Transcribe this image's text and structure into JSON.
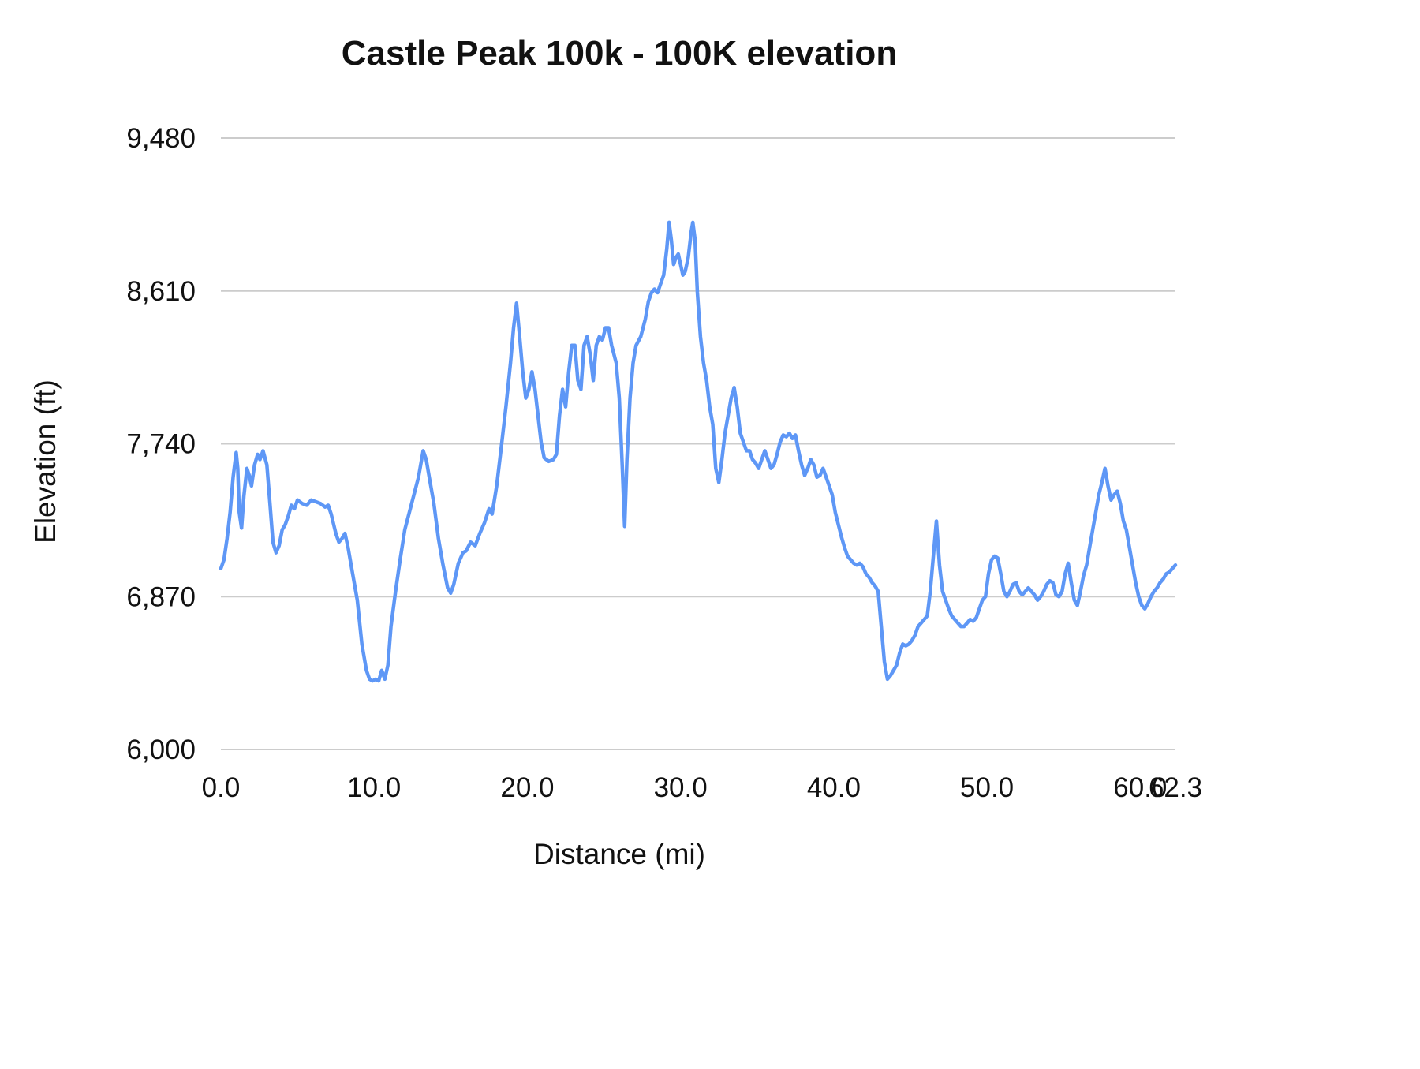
{
  "chart_data": {
    "type": "line",
    "title": "Castle Peak 100k - 100K elevation",
    "xlabel": "Distance (mi)",
    "ylabel": "Elevation (ft)",
    "xlim": [
      0,
      62.3
    ],
    "ylim": [
      6000,
      9480
    ],
    "grid": "horizontal",
    "legend": "none",
    "line_color": "#5e97f6",
    "x_ticks": [
      {
        "value": 0,
        "label": "0.0"
      },
      {
        "value": 10,
        "label": "10.0"
      },
      {
        "value": 20,
        "label": "20.0"
      },
      {
        "value": 30,
        "label": "30.0"
      },
      {
        "value": 40,
        "label": "40.0"
      },
      {
        "value": 50,
        "label": "50.0"
      },
      {
        "value": 60,
        "label": "60.0"
      },
      {
        "value": 62.3,
        "label": "62.3"
      }
    ],
    "y_ticks": [
      {
        "value": 6000,
        "label": "6,000"
      },
      {
        "value": 6870,
        "label": "6,870"
      },
      {
        "value": 7740,
        "label": "7,740"
      },
      {
        "value": 8610,
        "label": "8,610"
      },
      {
        "value": 9480,
        "label": "9,480"
      }
    ],
    "series": [
      {
        "name": "elevation",
        "color": "#5e97f6",
        "points": [
          [
            0.0,
            7030
          ],
          [
            0.2,
            7080
          ],
          [
            0.4,
            7200
          ],
          [
            0.6,
            7350
          ],
          [
            0.8,
            7550
          ],
          [
            1.0,
            7690
          ],
          [
            1.1,
            7600
          ],
          [
            1.2,
            7350
          ],
          [
            1.35,
            7260
          ],
          [
            1.5,
            7440
          ],
          [
            1.7,
            7600
          ],
          [
            1.85,
            7560
          ],
          [
            2.0,
            7500
          ],
          [
            2.2,
            7620
          ],
          [
            2.4,
            7680
          ],
          [
            2.55,
            7650
          ],
          [
            2.75,
            7700
          ],
          [
            3.0,
            7620
          ],
          [
            3.2,
            7400
          ],
          [
            3.4,
            7180
          ],
          [
            3.6,
            7120
          ],
          [
            3.8,
            7160
          ],
          [
            4.0,
            7250
          ],
          [
            4.2,
            7280
          ],
          [
            4.4,
            7330
          ],
          [
            4.6,
            7390
          ],
          [
            4.8,
            7370
          ],
          [
            5.0,
            7420
          ],
          [
            5.3,
            7400
          ],
          [
            5.6,
            7390
          ],
          [
            5.9,
            7420
          ],
          [
            6.2,
            7410
          ],
          [
            6.5,
            7400
          ],
          [
            6.8,
            7380
          ],
          [
            7.0,
            7390
          ],
          [
            7.2,
            7340
          ],
          [
            7.5,
            7230
          ],
          [
            7.7,
            7180
          ],
          [
            7.9,
            7200
          ],
          [
            8.1,
            7230
          ],
          [
            8.3,
            7150
          ],
          [
            8.6,
            7000
          ],
          [
            8.9,
            6850
          ],
          [
            9.2,
            6600
          ],
          [
            9.5,
            6450
          ],
          [
            9.7,
            6400
          ],
          [
            9.9,
            6390
          ],
          [
            10.1,
            6400
          ],
          [
            10.3,
            6390
          ],
          [
            10.5,
            6450
          ],
          [
            10.7,
            6400
          ],
          [
            10.9,
            6480
          ],
          [
            11.1,
            6700
          ],
          [
            11.4,
            6900
          ],
          [
            11.7,
            7080
          ],
          [
            12.0,
            7250
          ],
          [
            12.3,
            7350
          ],
          [
            12.6,
            7450
          ],
          [
            12.9,
            7550
          ],
          [
            13.2,
            7700
          ],
          [
            13.4,
            7650
          ],
          [
            13.6,
            7550
          ],
          [
            13.9,
            7400
          ],
          [
            14.2,
            7200
          ],
          [
            14.5,
            7050
          ],
          [
            14.8,
            6920
          ],
          [
            15.0,
            6890
          ],
          [
            15.2,
            6940
          ],
          [
            15.5,
            7060
          ],
          [
            15.8,
            7120
          ],
          [
            16.0,
            7130
          ],
          [
            16.3,
            7180
          ],
          [
            16.6,
            7160
          ],
          [
            16.9,
            7230
          ],
          [
            17.2,
            7290
          ],
          [
            17.5,
            7370
          ],
          [
            17.7,
            7340
          ],
          [
            18.0,
            7500
          ],
          [
            18.3,
            7720
          ],
          [
            18.6,
            7950
          ],
          [
            18.9,
            8200
          ],
          [
            19.1,
            8400
          ],
          [
            19.3,
            8540
          ],
          [
            19.5,
            8350
          ],
          [
            19.7,
            8150
          ],
          [
            19.9,
            8000
          ],
          [
            20.1,
            8050
          ],
          [
            20.3,
            8150
          ],
          [
            20.5,
            8050
          ],
          [
            20.7,
            7900
          ],
          [
            20.9,
            7750
          ],
          [
            21.1,
            7660
          ],
          [
            21.4,
            7640
          ],
          [
            21.7,
            7650
          ],
          [
            21.9,
            7680
          ],
          [
            22.1,
            7900
          ],
          [
            22.3,
            8050
          ],
          [
            22.5,
            7950
          ],
          [
            22.7,
            8150
          ],
          [
            22.9,
            8300
          ],
          [
            23.1,
            8300
          ],
          [
            23.3,
            8100
          ],
          [
            23.5,
            8050
          ],
          [
            23.7,
            8300
          ],
          [
            23.9,
            8350
          ],
          [
            24.1,
            8250
          ],
          [
            24.3,
            8100
          ],
          [
            24.5,
            8300
          ],
          [
            24.7,
            8350
          ],
          [
            24.9,
            8330
          ],
          [
            25.1,
            8400
          ],
          [
            25.3,
            8400
          ],
          [
            25.5,
            8300
          ],
          [
            25.8,
            8200
          ],
          [
            26.0,
            8000
          ],
          [
            26.2,
            7600
          ],
          [
            26.35,
            7270
          ],
          [
            26.5,
            7650
          ],
          [
            26.7,
            8000
          ],
          [
            26.9,
            8200
          ],
          [
            27.1,
            8300
          ],
          [
            27.4,
            8350
          ],
          [
            27.7,
            8450
          ],
          [
            27.9,
            8550
          ],
          [
            28.1,
            8600
          ],
          [
            28.3,
            8620
          ],
          [
            28.5,
            8600
          ],
          [
            28.7,
            8650
          ],
          [
            28.9,
            8700
          ],
          [
            29.1,
            8850
          ],
          [
            29.25,
            9000
          ],
          [
            29.4,
            8900
          ],
          [
            29.55,
            8760
          ],
          [
            29.7,
            8800
          ],
          [
            29.85,
            8820
          ],
          [
            30.0,
            8760
          ],
          [
            30.15,
            8700
          ],
          [
            30.3,
            8720
          ],
          [
            30.5,
            8800
          ],
          [
            30.7,
            8950
          ],
          [
            30.8,
            9000
          ],
          [
            30.95,
            8900
          ],
          [
            31.1,
            8600
          ],
          [
            31.3,
            8350
          ],
          [
            31.5,
            8200
          ],
          [
            31.7,
            8100
          ],
          [
            31.9,
            7950
          ],
          [
            32.1,
            7850
          ],
          [
            32.3,
            7600
          ],
          [
            32.5,
            7520
          ],
          [
            32.7,
            7650
          ],
          [
            32.9,
            7800
          ],
          [
            33.1,
            7900
          ],
          [
            33.3,
            8000
          ],
          [
            33.5,
            8060
          ],
          [
            33.7,
            7950
          ],
          [
            33.9,
            7800
          ],
          [
            34.1,
            7750
          ],
          [
            34.3,
            7700
          ],
          [
            34.5,
            7700
          ],
          [
            34.7,
            7650
          ],
          [
            34.9,
            7630
          ],
          [
            35.1,
            7600
          ],
          [
            35.3,
            7650
          ],
          [
            35.5,
            7700
          ],
          [
            35.7,
            7650
          ],
          [
            35.9,
            7600
          ],
          [
            36.1,
            7620
          ],
          [
            36.3,
            7680
          ],
          [
            36.5,
            7750
          ],
          [
            36.7,
            7790
          ],
          [
            36.9,
            7780
          ],
          [
            37.1,
            7800
          ],
          [
            37.3,
            7770
          ],
          [
            37.5,
            7790
          ],
          [
            37.7,
            7700
          ],
          [
            37.9,
            7620
          ],
          [
            38.1,
            7560
          ],
          [
            38.3,
            7600
          ],
          [
            38.5,
            7650
          ],
          [
            38.7,
            7620
          ],
          [
            38.9,
            7550
          ],
          [
            39.1,
            7560
          ],
          [
            39.3,
            7600
          ],
          [
            39.5,
            7550
          ],
          [
            39.7,
            7500
          ],
          [
            39.9,
            7450
          ],
          [
            40.1,
            7350
          ],
          [
            40.3,
            7280
          ],
          [
            40.5,
            7210
          ],
          [
            40.7,
            7150
          ],
          [
            40.9,
            7100
          ],
          [
            41.1,
            7080
          ],
          [
            41.3,
            7060
          ],
          [
            41.5,
            7050
          ],
          [
            41.7,
            7060
          ],
          [
            41.9,
            7040
          ],
          [
            42.1,
            7000
          ],
          [
            42.3,
            6980
          ],
          [
            42.5,
            6950
          ],
          [
            42.7,
            6930
          ],
          [
            42.9,
            6900
          ],
          [
            43.1,
            6700
          ],
          [
            43.3,
            6500
          ],
          [
            43.5,
            6400
          ],
          [
            43.7,
            6420
          ],
          [
            43.9,
            6450
          ],
          [
            44.1,
            6480
          ],
          [
            44.3,
            6550
          ],
          [
            44.5,
            6600
          ],
          [
            44.7,
            6590
          ],
          [
            44.9,
            6600
          ],
          [
            45.1,
            6620
          ],
          [
            45.3,
            6650
          ],
          [
            45.5,
            6700
          ],
          [
            45.7,
            6720
          ],
          [
            45.9,
            6740
          ],
          [
            46.1,
            6760
          ],
          [
            46.3,
            6900
          ],
          [
            46.5,
            7100
          ],
          [
            46.7,
            7300
          ],
          [
            46.9,
            7050
          ],
          [
            47.1,
            6900
          ],
          [
            47.3,
            6850
          ],
          [
            47.5,
            6800
          ],
          [
            47.7,
            6760
          ],
          [
            47.9,
            6740
          ],
          [
            48.1,
            6720
          ],
          [
            48.3,
            6700
          ],
          [
            48.5,
            6700
          ],
          [
            48.7,
            6720
          ],
          [
            48.9,
            6740
          ],
          [
            49.1,
            6730
          ],
          [
            49.3,
            6750
          ],
          [
            49.5,
            6800
          ],
          [
            49.7,
            6850
          ],
          [
            49.9,
            6870
          ],
          [
            50.1,
            7000
          ],
          [
            50.3,
            7080
          ],
          [
            50.5,
            7100
          ],
          [
            50.7,
            7090
          ],
          [
            50.9,
            7000
          ],
          [
            51.1,
            6900
          ],
          [
            51.3,
            6870
          ],
          [
            51.5,
            6900
          ],
          [
            51.7,
            6940
          ],
          [
            51.9,
            6950
          ],
          [
            52.1,
            6900
          ],
          [
            52.3,
            6880
          ],
          [
            52.5,
            6900
          ],
          [
            52.7,
            6920
          ],
          [
            52.9,
            6900
          ],
          [
            53.1,
            6880
          ],
          [
            53.3,
            6850
          ],
          [
            53.5,
            6870
          ],
          [
            53.7,
            6900
          ],
          [
            53.9,
            6940
          ],
          [
            54.1,
            6960
          ],
          [
            54.3,
            6950
          ],
          [
            54.5,
            6880
          ],
          [
            54.7,
            6870
          ],
          [
            54.9,
            6900
          ],
          [
            55.1,
            7000
          ],
          [
            55.3,
            7060
          ],
          [
            55.5,
            6950
          ],
          [
            55.7,
            6850
          ],
          [
            55.9,
            6820
          ],
          [
            56.1,
            6900
          ],
          [
            56.3,
            6990
          ],
          [
            56.5,
            7050
          ],
          [
            56.7,
            7150
          ],
          [
            56.9,
            7250
          ],
          [
            57.1,
            7350
          ],
          [
            57.3,
            7450
          ],
          [
            57.5,
            7520
          ],
          [
            57.7,
            7600
          ],
          [
            57.9,
            7500
          ],
          [
            58.1,
            7420
          ],
          [
            58.3,
            7450
          ],
          [
            58.5,
            7470
          ],
          [
            58.7,
            7400
          ],
          [
            58.9,
            7300
          ],
          [
            59.1,
            7250
          ],
          [
            59.3,
            7150
          ],
          [
            59.5,
            7050
          ],
          [
            59.7,
            6950
          ],
          [
            59.9,
            6870
          ],
          [
            60.1,
            6820
          ],
          [
            60.3,
            6800
          ],
          [
            60.5,
            6830
          ],
          [
            60.7,
            6870
          ],
          [
            60.9,
            6900
          ],
          [
            61.1,
            6920
          ],
          [
            61.3,
            6950
          ],
          [
            61.5,
            6970
          ],
          [
            61.7,
            7000
          ],
          [
            61.9,
            7010
          ],
          [
            62.1,
            7030
          ],
          [
            62.3,
            7050
          ]
        ]
      }
    ]
  }
}
